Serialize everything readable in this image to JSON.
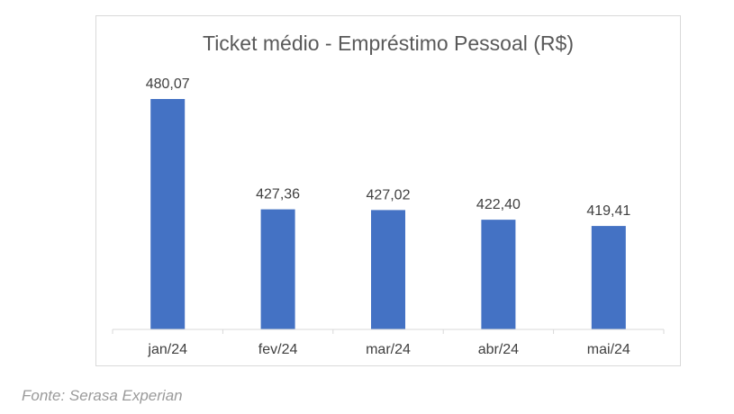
{
  "chart_data": {
    "type": "bar",
    "title": "Ticket médio - Empréstimo Pessoal (R$)",
    "categories": [
      "jan/24",
      "fev/24",
      "mar/24",
      "abr/24",
      "mai/24"
    ],
    "values": [
      480.07,
      427.36,
      427.02,
      422.4,
      419.41
    ],
    "data_labels": [
      "480,07",
      "427,36",
      "427,02",
      "422,40",
      "419,41"
    ],
    "xlabel": "",
    "ylabel": "",
    "ylim": [
      370,
      490
    ],
    "grid": false,
    "legend": "none",
    "bar_color": "#4472c4"
  },
  "source": "Fonte: Serasa Experian"
}
